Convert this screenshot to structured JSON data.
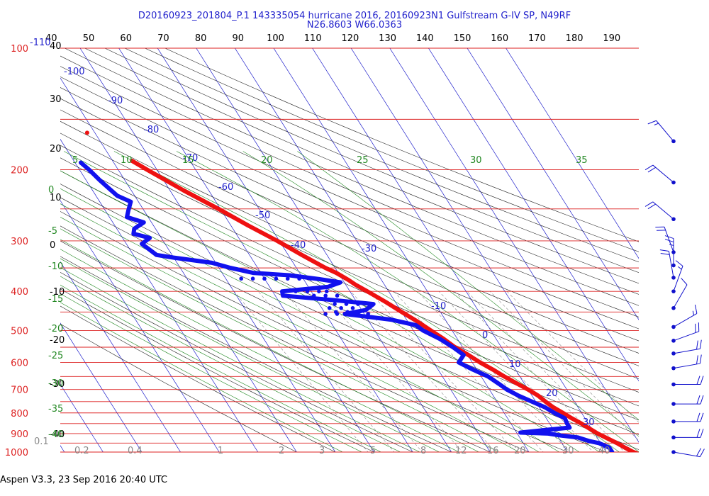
{
  "header": {
    "title_line1": "D20160923_201804_P.1 143335054 hurricane 2016, 20160923N1 Gulfstream G-IV SP, N49RF",
    "title_line2": "N26.8603 W66.0363"
  },
  "footer": {
    "software_stamp": "Aspen V3.3, 23 Sep 2016  20:40 UTC"
  },
  "colors": {
    "isobar": "#dd2222",
    "isotherm": "#2222cc",
    "dry_adiabat": "#222222",
    "moist_adiabat": "#228822",
    "mixing_ratio": "#888888",
    "temperature": "#ee1111",
    "dewpoint": "#1111ee",
    "wind": "#1111cc"
  },
  "chart_data": {
    "type": "skew-t",
    "pressure_labels": [
      {
        "p": 100,
        "text": "100"
      },
      {
        "p": 200,
        "text": "200"
      },
      {
        "p": 300,
        "text": "300"
      },
      {
        "p": 400,
        "text": "400"
      },
      {
        "p": 500,
        "text": "500"
      },
      {
        "p": 600,
        "text": "600"
      },
      {
        "p": 700,
        "text": "700"
      },
      {
        "p": 800,
        "text": "800"
      },
      {
        "p": 900,
        "text": "900"
      },
      {
        "p": 1000,
        "text": "1000"
      }
    ],
    "theta_ticks": [
      {
        "theta": 40,
        "text": "40"
      },
      {
        "theta": 50,
        "text": "50"
      },
      {
        "theta": 60,
        "text": "60"
      },
      {
        "theta": 70,
        "text": "70"
      },
      {
        "theta": 80,
        "text": "80"
      },
      {
        "theta": 90,
        "text": "90"
      },
      {
        "theta": 100,
        "text": "100"
      },
      {
        "theta": 110,
        "text": "110"
      },
      {
        "theta": 120,
        "text": "120"
      },
      {
        "theta": 130,
        "text": "130"
      },
      {
        "theta": 140,
        "text": "140"
      },
      {
        "theta": 150,
        "text": "150"
      },
      {
        "theta": 160,
        "text": "160"
      },
      {
        "theta": 170,
        "text": "170"
      },
      {
        "theta": 180,
        "text": "180"
      },
      {
        "theta": 190,
        "text": "190"
      }
    ],
    "dry_adiabat_left_labels": [
      {
        "theta": 40,
        "text": "40"
      },
      {
        "theta": 30,
        "text": "30"
      },
      {
        "theta": 20,
        "text": "20"
      },
      {
        "theta": 10,
        "text": "10"
      },
      {
        "theta": 0,
        "text": "0"
      },
      {
        "theta": -10,
        "text": "-10"
      },
      {
        "theta": -20,
        "text": "-20"
      },
      {
        "theta": -30,
        "text": "-30"
      },
      {
        "theta": -40,
        "text": "-40"
      }
    ],
    "isotherm_labels": [
      {
        "t": -110,
        "text": "-110"
      },
      {
        "t": -100,
        "text": "-100"
      },
      {
        "t": -90,
        "text": "-90"
      },
      {
        "t": -80,
        "text": "-80"
      },
      {
        "t": -70,
        "text": "-70"
      },
      {
        "t": -60,
        "text": "-60"
      },
      {
        "t": -50,
        "text": "-50"
      },
      {
        "t": -40,
        "text": "-40"
      },
      {
        "t": -30,
        "text": "-30"
      },
      {
        "t": -10,
        "text": "-10"
      },
      {
        "t": 0,
        "text": "0"
      },
      {
        "t": 10,
        "text": "10"
      },
      {
        "t": 20,
        "text": "20"
      },
      {
        "t": 30,
        "text": "30"
      }
    ],
    "moist_adiabat_top_labels": [
      {
        "value": 5,
        "text": "5"
      },
      {
        "value": 10,
        "text": "10"
      },
      {
        "value": 15,
        "text": "15"
      },
      {
        "value": 20,
        "text": "20"
      },
      {
        "value": 25,
        "text": "25"
      },
      {
        "value": 30,
        "text": "30"
      },
      {
        "value": 35,
        "text": "35"
      }
    ],
    "moist_adiabat_left_labels": [
      {
        "value": 0,
        "text": "0"
      },
      {
        "value": -5,
        "text": "-5"
      },
      {
        "value": -10,
        "text": "-10"
      },
      {
        "value": -15,
        "text": "-15"
      },
      {
        "value": -20,
        "text": "-20"
      },
      {
        "value": -25,
        "text": "-25"
      },
      {
        "value": -30,
        "text": "-30"
      },
      {
        "value": -35,
        "text": "-35"
      },
      {
        "value": -40,
        "text": "-40"
      }
    ],
    "mixing_ratio_labels": [
      {
        "w": 0.1,
        "text": "0.1"
      },
      {
        "w": 0.2,
        "text": "0.2"
      },
      {
        "w": 0.4,
        "text": "0.4"
      },
      {
        "w": 1,
        "text": "1"
      },
      {
        "w": 2,
        "text": "2"
      },
      {
        "w": 3,
        "text": "3"
      },
      {
        "w": 5,
        "text": "5"
      },
      {
        "w": 8,
        "text": "8"
      },
      {
        "w": 12,
        "text": "12"
      },
      {
        "w": 16,
        "text": "16"
      },
      {
        "w": 20,
        "text": "20"
      },
      {
        "w": 30,
        "text": "30"
      },
      {
        "w": 40,
        "text": "40"
      }
    ],
    "temperature_profile": [
      {
        "p": 1006,
        "t": 27.6
      },
      {
        "p": 1000,
        "t": 27.0
      },
      {
        "p": 975,
        "t": 25.5
      },
      {
        "p": 950,
        "t": 24.2
      },
      {
        "p": 925,
        "t": 22.5
      },
      {
        "p": 900,
        "t": 20.8
      },
      {
        "p": 875,
        "t": 19.5
      },
      {
        "p": 850,
        "t": 18.2
      },
      {
        "p": 825,
        "t": 16.6
      },
      {
        "p": 800,
        "t": 15.2
      },
      {
        "p": 775,
        "t": 13.6
      },
      {
        "p": 750,
        "t": 12.5
      },
      {
        "p": 725,
        "t": 11.6
      },
      {
        "p": 700,
        "t": 10.0
      },
      {
        "p": 675,
        "t": 8.0
      },
      {
        "p": 650,
        "t": 6.0
      },
      {
        "p": 625,
        "t": 4.2
      },
      {
        "p": 600,
        "t": 2.0
      },
      {
        "p": 575,
        "t": 0.2
      },
      {
        "p": 550,
        "t": -2.0
      },
      {
        "p": 525,
        "t": -3.5
      },
      {
        "p": 500,
        "t": -5.5
      },
      {
        "p": 475,
        "t": -7.5
      },
      {
        "p": 450,
        "t": -10.0
      },
      {
        "p": 425,
        "t": -12.5
      },
      {
        "p": 400,
        "t": -15.5
      },
      {
        "p": 385,
        "t": -17.5
      },
      {
        "p": 375,
        "t": -18.5
      },
      {
        "p": 360,
        "t": -20.5
      },
      {
        "p": 350,
        "t": -22.5
      },
      {
        "p": 325,
        "t": -26.5
      },
      {
        "p": 300,
        "t": -30.5
      },
      {
        "p": 275,
        "t": -35.5
      },
      {
        "p": 250,
        "t": -40.5
      },
      {
        "p": 225,
        "t": -46.5
      },
      {
        "p": 200,
        "t": -52.5
      },
      {
        "p": 190,
        "t": -55.0
      }
    ],
    "temperature_isolated_points": [
      {
        "p": 162,
        "t": -62.0
      }
    ],
    "dewpoint_profile": [
      {
        "p": 1000,
        "t": 21.5
      },
      {
        "p": 975,
        "t": 21.5
      },
      {
        "p": 950,
        "t": 19.5
      },
      {
        "p": 940,
        "t": 17.5
      },
      {
        "p": 920,
        "t": 15.0
      },
      {
        "p": 910,
        "t": 11.0
      },
      {
        "p": 900,
        "t": 8.0
      },
      {
        "p": 895,
        "t": 1.0
      },
      {
        "p": 885,
        "t": 6.0
      },
      {
        "p": 870,
        "t": 14.5
      },
      {
        "p": 850,
        "t": 14.5
      },
      {
        "p": 825,
        "t": 14.8
      },
      {
        "p": 800,
        "t": 13.0
      },
      {
        "p": 775,
        "t": 11.5
      },
      {
        "p": 750,
        "t": 9.0
      },
      {
        "p": 725,
        "t": 6.5
      },
      {
        "p": 700,
        "t": 4.5
      },
      {
        "p": 680,
        "t": 3.5
      },
      {
        "p": 650,
        "t": 1.8
      },
      {
        "p": 625,
        "t": -1.0
      },
      {
        "p": 600,
        "t": -3.5
      },
      {
        "p": 575,
        "t": -1.0
      },
      {
        "p": 550,
        "t": -2.5
      },
      {
        "p": 525,
        "t": -4.5
      },
      {
        "p": 500,
        "t": -7.5
      },
      {
        "p": 485,
        "t": -8.5
      },
      {
        "p": 470,
        "t": -14.0
      },
      {
        "p": 455,
        "t": -25.0
      },
      {
        "p": 445,
        "t": -19.0
      },
      {
        "p": 430,
        "t": -16.0
      },
      {
        "p": 420,
        "t": -26.0
      },
      {
        "p": 410,
        "t": -38.0
      },
      {
        "p": 400,
        "t": -37.5
      },
      {
        "p": 390,
        "t": -25.0
      },
      {
        "p": 380,
        "t": -21.0
      },
      {
        "p": 373,
        "t": -26.0
      },
      {
        "p": 365,
        "t": -33.0
      },
      {
        "p": 360,
        "t": -42.0
      },
      {
        "p": 350,
        "t": -47.0
      },
      {
        "p": 340,
        "t": -51.0
      },
      {
        "p": 330,
        "t": -60.0
      },
      {
        "p": 325,
        "t": -64.0
      },
      {
        "p": 315,
        "t": -65.0
      },
      {
        "p": 305,
        "t": -66.0
      },
      {
        "p": 295,
        "t": -63.0
      },
      {
        "p": 288,
        "t": -66.5
      },
      {
        "p": 280,
        "t": -65.5
      },
      {
        "p": 270,
        "t": -62.0
      },
      {
        "p": 262,
        "t": -65.5
      },
      {
        "p": 252,
        "t": -64.0
      },
      {
        "p": 240,
        "t": -62.0
      },
      {
        "p": 232,
        "t": -64.5
      },
      {
        "p": 222,
        "t": -65.5
      },
      {
        "p": 212,
        "t": -66.5
      },
      {
        "p": 200,
        "t": -67.5
      },
      {
        "p": 192,
        "t": -68.5
      }
    ],
    "dewpoint_scattered_points": [
      {
        "p": 372,
        "t": -46.0
      },
      {
        "p": 372,
        "t": -43.0
      },
      {
        "p": 372,
        "t": -40.0
      },
      {
        "p": 372,
        "t": -37.0
      },
      {
        "p": 372,
        "t": -34.0
      },
      {
        "p": 372,
        "t": -31.0
      },
      {
        "p": 372,
        "t": -28.0
      },
      {
        "p": 400,
        "t": -34.0
      },
      {
        "p": 400,
        "t": -31.0
      },
      {
        "p": 400,
        "t": -28.0
      },
      {
        "p": 400,
        "t": -26.0
      },
      {
        "p": 430,
        "t": -26.0
      },
      {
        "p": 430,
        "t": -23.0
      },
      {
        "p": 430,
        "t": -20.0
      },
      {
        "p": 440,
        "t": -28.0
      },
      {
        "p": 440,
        "t": -25.0
      },
      {
        "p": 440,
        "t": -22.0
      },
      {
        "p": 450,
        "t": -27.0
      },
      {
        "p": 450,
        "t": -24.0
      },
      {
        "p": 450,
        "t": -21.0
      },
      {
        "p": 455,
        "t": -30.0
      },
      {
        "p": 455,
        "t": -27.0
      },
      {
        "p": 455,
        "t": -22.0
      },
      {
        "p": 455,
        "t": -19.0
      },
      {
        "p": 410,
        "t": -30.0
      },
      {
        "p": 410,
        "t": -27.0
      },
      {
        "p": 410,
        "t": -24.0
      }
    ],
    "wind_barbs": [
      {
        "p": 170,
        "dir": 320,
        "spd": 15
      },
      {
        "p": 215,
        "dir": 310,
        "spd": 20
      },
      {
        "p": 265,
        "dir": 310,
        "spd": 20
      },
      {
        "p": 320,
        "dir": 340,
        "spd": 20
      },
      {
        "p": 345,
        "dir": 360,
        "spd": 25
      },
      {
        "p": 370,
        "dir": 350,
        "spd": 20
      },
      {
        "p": 400,
        "dir": 20,
        "spd": 15
      },
      {
        "p": 440,
        "dir": 30,
        "spd": 10
      },
      {
        "p": 490,
        "dir": 60,
        "spd": 15
      },
      {
        "p": 530,
        "dir": 70,
        "spd": 20
      },
      {
        "p": 570,
        "dir": 80,
        "spd": 20
      },
      {
        "p": 620,
        "dir": 80,
        "spd": 20
      },
      {
        "p": 680,
        "dir": 90,
        "spd": 20
      },
      {
        "p": 760,
        "dir": 90,
        "spd": 20
      },
      {
        "p": 840,
        "dir": 90,
        "spd": 20
      },
      {
        "p": 920,
        "dir": 90,
        "spd": 20
      },
      {
        "p": 1000,
        "dir": 100,
        "spd": 20
      }
    ]
  }
}
